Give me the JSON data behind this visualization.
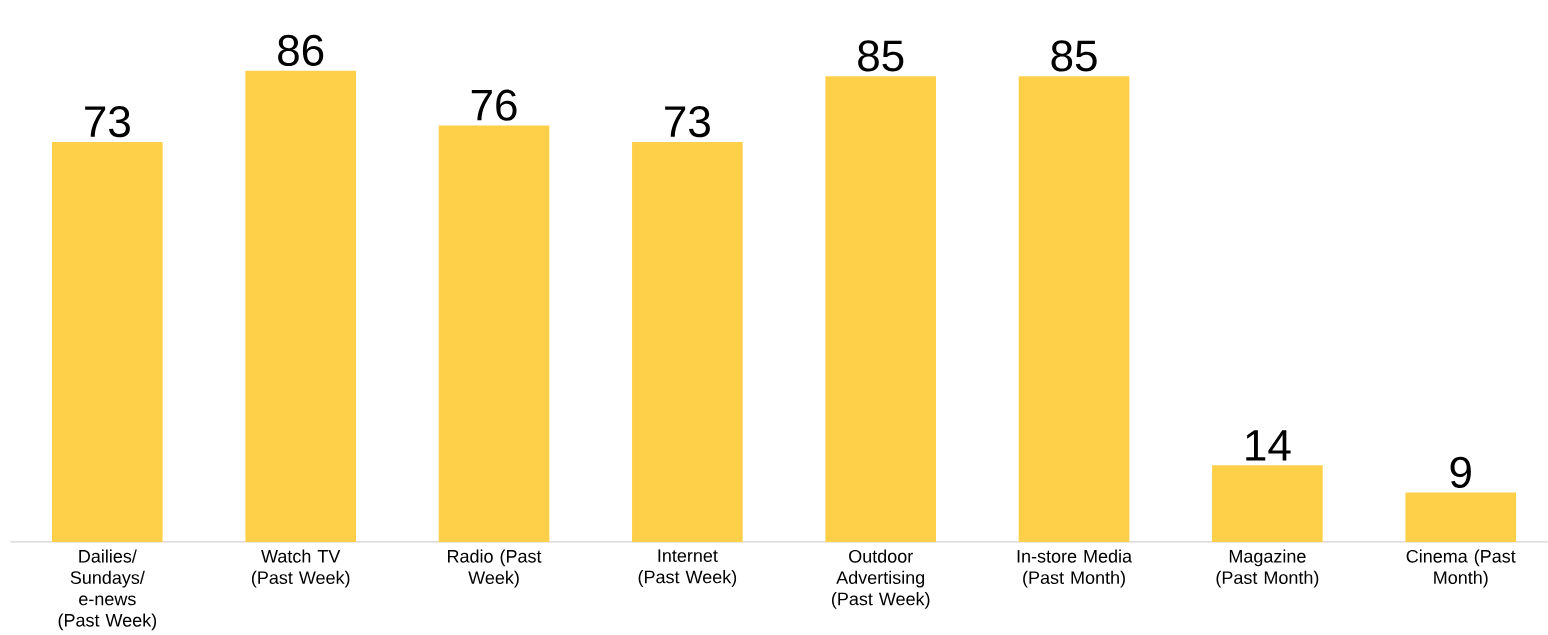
{
  "chart_data": {
    "type": "bar",
    "categories": [
      "Dailies/ Sundays/ e-news (Past Week)",
      "Watch TV (Past Week)",
      "Radio (Past Week)",
      "Internet (Past Week)",
      "Outdoor Advertising (Past Week)",
      "In-store Media (Past Month)",
      "Magazine (Past Month)",
      "Cinema (Past Month)"
    ],
    "values": [
      73,
      86,
      76,
      73,
      85,
      85,
      14,
      9
    ],
    "color": "#fed049",
    "data_labels": true
  }
}
